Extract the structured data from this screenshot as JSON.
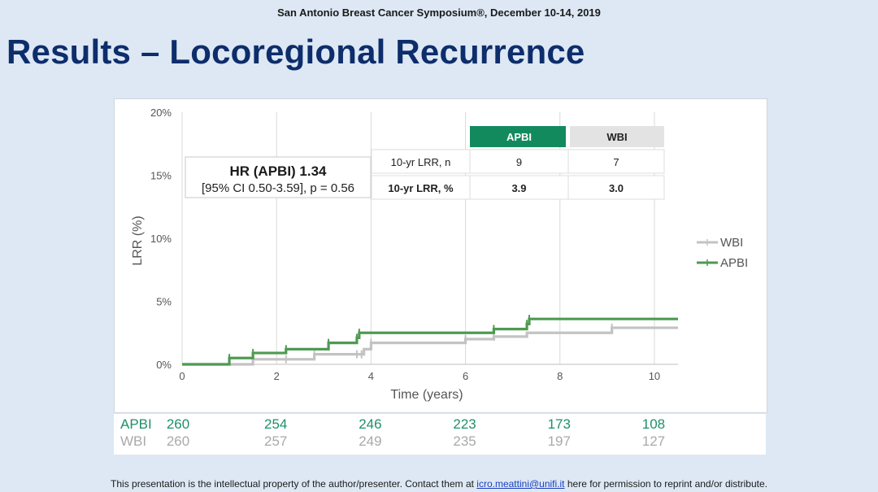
{
  "header": {
    "conference": "San Antonio Breast Cancer Symposium®, December 10-14, 2019",
    "title": "Results – Locoregional Recurrence"
  },
  "chart_data": {
    "type": "line",
    "subtype": "kaplan-meier step curve (cumulative incidence)",
    "xlabel": "Time (years)",
    "ylabel": "LRR (%)",
    "xlim": [
      0,
      10.5
    ],
    "ylim": [
      0,
      20
    ],
    "x_ticks": [
      "0",
      "2",
      "4",
      "6",
      "8",
      "10"
    ],
    "y_ticks": [
      "0%",
      "5%",
      "10%",
      "15%",
      "20%"
    ],
    "grid": "vertical",
    "legend_position": "right",
    "series": [
      {
        "name": "WBI",
        "color": "#c3c3c3",
        "steps": [
          [
            0,
            0
          ],
          [
            1.5,
            0.4
          ],
          [
            2.8,
            0.8
          ],
          [
            3.85,
            1.2
          ],
          [
            4.0,
            1.7
          ],
          [
            6.0,
            2.0
          ],
          [
            6.6,
            2.2
          ],
          [
            7.3,
            2.5
          ],
          [
            9.1,
            2.9
          ],
          [
            10.5,
            2.9
          ]
        ],
        "censor_x": [
          1.5,
          2.2,
          2.8,
          3.7,
          3.8,
          4.0,
          6.0,
          6.6,
          9.1
        ]
      },
      {
        "name": "APBI",
        "color": "#4e9a52",
        "steps": [
          [
            0,
            0
          ],
          [
            1.0,
            0.5
          ],
          [
            1.5,
            0.9
          ],
          [
            2.2,
            1.2
          ],
          [
            3.1,
            1.7
          ],
          [
            3.7,
            2.1
          ],
          [
            3.75,
            2.5
          ],
          [
            6.6,
            2.8
          ],
          [
            7.3,
            3.2
          ],
          [
            7.35,
            3.6
          ],
          [
            10.5,
            3.6
          ]
        ],
        "censor_x": [
          1.0,
          1.5,
          2.2,
          3.1,
          3.7,
          3.75,
          6.6,
          7.3,
          7.35
        ]
      }
    ],
    "hr_box": {
      "line1": "HR (APBI) 1.34",
      "line2": "[95% CI 0.50-3.59], p = 0.56"
    },
    "inset_table": {
      "headers": [
        "APBI",
        "WBI"
      ],
      "rows": [
        {
          "label": "10-yr LRR, n",
          "apbi": "9",
          "wbi": "7"
        },
        {
          "label": "10-yr LRR, %",
          "apbi": "3.9",
          "wbi": "3.0"
        }
      ]
    },
    "at_risk": {
      "x": [
        0,
        2,
        4,
        6,
        8,
        10
      ],
      "rows": [
        {
          "label": "APBI",
          "color": "#1e8f6b",
          "values": [
            "260",
            "254",
            "246",
            "223",
            "173",
            "108"
          ]
        },
        {
          "label": "WBI",
          "color": "#a9a9a9",
          "values": [
            "260",
            "257",
            "249",
            "235",
            "197",
            "127"
          ]
        }
      ]
    }
  },
  "footer": {
    "text_before": "This presentation is the intellectual property of the author/presenter. Contact them at ",
    "email": "icro.meattini@unifi.it",
    "text_after": " here for permission to reprint and/or distribute."
  }
}
